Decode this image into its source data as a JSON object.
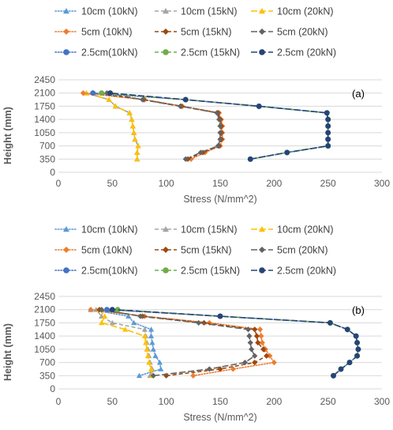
{
  "chart_data": [
    {
      "panel_label": "(a)",
      "type": "line",
      "xlabel": "Stress (N/mm^2)",
      "ylabel": "Height (mm)",
      "xlim": [
        0,
        300
      ],
      "ylim": [
        0,
        2450
      ],
      "x_ticks": [
        "0",
        "50",
        "100",
        "150",
        "200",
        "250",
        "300"
      ],
      "y_ticks": [
        "0",
        "350",
        "700",
        "1050",
        "1400",
        "1750",
        "2100",
        "2450"
      ],
      "grid": "horizontal",
      "legend_position": "top",
      "series": [
        {
          "name": "10cm (10kN)",
          "color": "#5B9BD5",
          "dash": "dot",
          "marker": "triangle",
          "points": [
            [
              73,
              350
            ],
            [
              73,
              525
            ],
            [
              74,
              700
            ],
            [
              71,
              875
            ],
            [
              70,
              1050
            ],
            [
              69,
              1225
            ],
            [
              68,
              1400
            ],
            [
              66,
              1575
            ],
            [
              53,
              1750
            ],
            [
              47,
              1925
            ],
            [
              26,
              2100
            ]
          ]
        },
        {
          "name": "10cm (15kN)",
          "color": "#A5A5A5",
          "dash": "dash",
          "marker": "triangle",
          "points": [
            [
              73,
              350
            ],
            [
              73,
              525
            ],
            [
              74,
              700
            ],
            [
              71,
              875
            ],
            [
              70,
              1050
            ],
            [
              69,
              1225
            ],
            [
              68,
              1400
            ],
            [
              66,
              1575
            ],
            [
              53,
              1750
            ],
            [
              47,
              1925
            ],
            [
              26,
              2100
            ]
          ]
        },
        {
          "name": "10cm (20kN)",
          "color": "#FFC000",
          "dash": "longdash",
          "marker": "triangle",
          "points": [
            [
              73,
              350
            ],
            [
              73,
              525
            ],
            [
              74,
              700
            ],
            [
              71,
              875
            ],
            [
              70,
              1050
            ],
            [
              69,
              1225
            ],
            [
              68,
              1400
            ],
            [
              66,
              1575
            ],
            [
              53,
              1750
            ],
            [
              47,
              1925
            ],
            [
              26,
              2100
            ]
          ]
        },
        {
          "name": "5cm (10kN)",
          "color": "#ED7D31",
          "dash": "dot",
          "marker": "diamond",
          "points": [
            [
              123,
              350
            ],
            [
              136,
              525
            ],
            [
              150,
              700
            ],
            [
              152,
              875
            ],
            [
              152,
              1050
            ],
            [
              152,
              1225
            ],
            [
              151,
              1400
            ],
            [
              149,
              1575
            ],
            [
              115,
              1750
            ],
            [
              80,
              1925
            ],
            [
              23,
              2100
            ]
          ]
        },
        {
          "name": "5cm (15kN)",
          "color": "#9E480E",
          "dash": "dash",
          "marker": "diamond",
          "points": [
            [
              120,
              350
            ],
            [
              134,
              525
            ],
            [
              149,
              700
            ],
            [
              151,
              875
            ],
            [
              151,
              1050
            ],
            [
              151,
              1225
            ],
            [
              150,
              1400
            ],
            [
              148,
              1575
            ],
            [
              114,
              1750
            ],
            [
              79,
              1925
            ],
            [
              32,
              2100
            ]
          ]
        },
        {
          "name": "5cm (20kN)",
          "color": "#636363",
          "dash": "longdash",
          "marker": "diamond",
          "points": [
            [
              118,
              350
            ],
            [
              132,
              525
            ],
            [
              148,
              700
            ],
            [
              150,
              875
            ],
            [
              150,
              1050
            ],
            [
              150,
              1225
            ],
            [
              149,
              1400
            ],
            [
              147,
              1575
            ],
            [
              113,
              1750
            ],
            [
              78,
              1925
            ],
            [
              45,
              2100
            ]
          ]
        },
        {
          "name": "2.5cm(10kN)",
          "color": "#4472C4",
          "dash": "dot",
          "marker": "circle",
          "points": [
            [
              178,
              350
            ],
            [
              212,
              525
            ],
            [
              250,
              700
            ],
            [
              250,
              875
            ],
            [
              250,
              1050
            ],
            [
              250,
              1225
            ],
            [
              250,
              1400
            ],
            [
              249,
              1575
            ],
            [
              186,
              1750
            ],
            [
              118,
              1925
            ],
            [
              32,
              2100
            ]
          ]
        },
        {
          "name": "2.5cm (15kN)",
          "color": "#70AD47",
          "dash": "dash",
          "marker": "circle",
          "points": [
            [
              178,
              350
            ],
            [
              212,
              525
            ],
            [
              250,
              700
            ],
            [
              250,
              875
            ],
            [
              250,
              1050
            ],
            [
              250,
              1225
            ],
            [
              250,
              1400
            ],
            [
              249,
              1575
            ],
            [
              186,
              1750
            ],
            [
              118,
              1925
            ],
            [
              40,
              2100
            ]
          ]
        },
        {
          "name": "2.5cm (20kN)",
          "color": "#264478",
          "dash": "longdash",
          "marker": "circle",
          "points": [
            [
              178,
              350
            ],
            [
              212,
              525
            ],
            [
              250,
              700
            ],
            [
              250,
              875
            ],
            [
              250,
              1050
            ],
            [
              250,
              1225
            ],
            [
              250,
              1400
            ],
            [
              249,
              1575
            ],
            [
              186,
              1750
            ],
            [
              118,
              1925
            ],
            [
              48,
              2100
            ]
          ]
        }
      ]
    },
    {
      "panel_label": "(b)",
      "type": "line",
      "xlabel": "Stress (N/mm^2)",
      "ylabel": "Height (mm)",
      "xlim": [
        0,
        300
      ],
      "ylim": [
        0,
        2450
      ],
      "x_ticks": [
        "0",
        "50",
        "100",
        "150",
        "200",
        "250",
        "300"
      ],
      "y_ticks": [
        "0",
        "350",
        "700",
        "1050",
        "1400",
        "1750",
        "2100",
        "2450"
      ],
      "grid": "horizontal",
      "legend_position": "top",
      "series": [
        {
          "name": "10cm (10kN)",
          "color": "#5B9BD5",
          "dash": "dot",
          "marker": "triangle",
          "points": [
            [
              75,
              350
            ],
            [
              95,
              525
            ],
            [
              94,
              700
            ],
            [
              90,
              875
            ],
            [
              88,
              1050
            ],
            [
              87,
              1225
            ],
            [
              86,
              1400
            ],
            [
              86,
              1575
            ],
            [
              70,
              1750
            ],
            [
              65,
              1925
            ],
            [
              30,
              2100
            ]
          ]
        },
        {
          "name": "10cm (15kN)",
          "color": "#A5A5A5",
          "dash": "dash",
          "marker": "triangle",
          "points": [
            [
              85,
              350
            ],
            [
              87,
              525
            ],
            [
              85,
              700
            ],
            [
              84,
              875
            ],
            [
              83,
              1050
            ],
            [
              82,
              1225
            ],
            [
              81,
              1400
            ],
            [
              80,
              1575
            ],
            [
              50,
              1750
            ],
            [
              40,
              1925
            ],
            [
              35,
              2100
            ]
          ]
        },
        {
          "name": "10cm (20kN)",
          "color": "#FFC000",
          "dash": "longdash",
          "marker": "triangle",
          "points": [
            [
              87,
              350
            ],
            [
              86,
              525
            ],
            [
              84,
              700
            ],
            [
              83,
              875
            ],
            [
              82,
              1050
            ],
            [
              81,
              1225
            ],
            [
              80,
              1400
            ],
            [
              62,
              1575
            ],
            [
              40,
              1750
            ],
            [
              43,
              1925
            ],
            [
              38,
              2100
            ]
          ]
        },
        {
          "name": "5cm (10kN)",
          "color": "#ED7D31",
          "dash": "dot",
          "marker": "diamond",
          "points": [
            [
              125,
              350
            ],
            [
              162,
              525
            ],
            [
              200,
              700
            ],
            [
              196,
              875
            ],
            [
              192,
              1050
            ],
            [
              189,
              1225
            ],
            [
              188,
              1400
            ],
            [
              187,
              1575
            ],
            [
              140,
              1750
            ],
            [
              80,
              1925
            ],
            [
              30,
              2100
            ]
          ]
        },
        {
          "name": "5cm (15kN)",
          "color": "#9E480E",
          "dash": "dash",
          "marker": "diamond",
          "points": [
            [
              100,
              350
            ],
            [
              150,
              525
            ],
            [
              182,
              700
            ],
            [
              193,
              875
            ],
            [
              190,
              1050
            ],
            [
              185,
              1225
            ],
            [
              184,
              1400
            ],
            [
              182,
              1575
            ],
            [
              135,
              1750
            ],
            [
              78,
              1925
            ],
            [
              38,
              2100
            ]
          ]
        },
        {
          "name": "5cm (20kN)",
          "color": "#636363",
          "dash": "longdash",
          "marker": "diamond",
          "points": [
            [
              88,
              350
            ],
            [
              140,
              525
            ],
            [
              173,
              700
            ],
            [
              182,
              875
            ],
            [
              179,
              1050
            ],
            [
              178,
              1225
            ],
            [
              177,
              1400
            ],
            [
              176,
              1575
            ],
            [
              130,
              1750
            ],
            [
              76,
              1925
            ],
            [
              40,
              2100
            ]
          ]
        },
        {
          "name": "2.5cm(10kN)",
          "color": "#4472C4",
          "dash": "dot",
          "marker": "circle",
          "points": [
            [
              255,
              350
            ],
            [
              262,
              525
            ],
            [
              270,
              700
            ],
            [
              277,
              875
            ],
            [
              278,
              1050
            ],
            [
              277,
              1225
            ],
            [
              276,
              1400
            ],
            [
              268,
              1575
            ],
            [
              252,
              1750
            ],
            [
              150,
              1925
            ],
            [
              45,
              2100
            ]
          ]
        },
        {
          "name": "2.5cm (15kN)",
          "color": "#70AD47",
          "dash": "dash",
          "marker": "circle",
          "points": [
            [
              255,
              350
            ],
            [
              262,
              525
            ],
            [
              270,
              700
            ],
            [
              277,
              875
            ],
            [
              278,
              1050
            ],
            [
              277,
              1225
            ],
            [
              276,
              1400
            ],
            [
              268,
              1575
            ],
            [
              252,
              1750
            ],
            [
              150,
              1925
            ],
            [
              55,
              2100
            ]
          ]
        },
        {
          "name": "2.5cm (20kN)",
          "color": "#264478",
          "dash": "longdash",
          "marker": "circle",
          "points": [
            [
              255,
              350
            ],
            [
              262,
              525
            ],
            [
              270,
              700
            ],
            [
              277,
              875
            ],
            [
              278,
              1050
            ],
            [
              277,
              1225
            ],
            [
              276,
              1400
            ],
            [
              268,
              1575
            ],
            [
              252,
              1750
            ],
            [
              150,
              1925
            ],
            [
              50,
              2100
            ]
          ]
        }
      ]
    }
  ]
}
